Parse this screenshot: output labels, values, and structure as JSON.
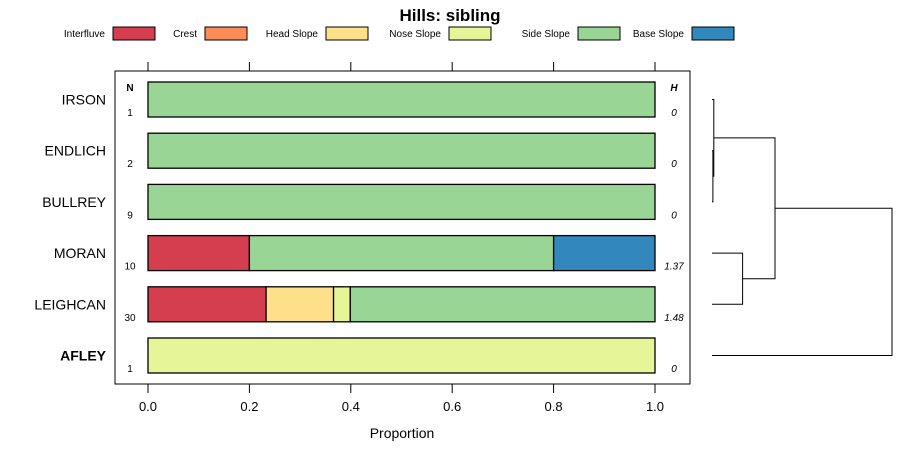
{
  "chart_data": {
    "type": "bar",
    "orientation": "horizontal-stacked",
    "title": "Hills: sibling",
    "xlabel": "Proportion",
    "ylabel": "",
    "xlim": [
      0,
      1
    ],
    "x_ticks": [
      "0.0",
      "0.2",
      "0.4",
      "0.6",
      "0.8",
      "1.0"
    ],
    "x_tick_values": [
      0,
      0.2,
      0.4,
      0.6,
      0.8,
      1.0
    ],
    "legend_position": "top",
    "n_header": "N",
    "h_header": "H",
    "series": [
      {
        "name": "Interfluve",
        "color": "#d53e4f"
      },
      {
        "name": "Crest",
        "color": "#fc8d59"
      },
      {
        "name": "Head Slope",
        "color": "#fee08b"
      },
      {
        "name": "Nose Slope",
        "color": "#e6f598"
      },
      {
        "name": "Side Slope",
        "color": "#99d594"
      },
      {
        "name": "Base Slope",
        "color": "#3288bd"
      }
    ],
    "categories": [
      "IRSON",
      "ENDLICH",
      "BULLREY",
      "MORAN",
      "LEIGHCAN",
      "AFLEY"
    ],
    "rows": [
      {
        "label": "IRSON",
        "n": "1",
        "h": "0",
        "bold": false,
        "values": [
          0,
          0,
          0,
          0,
          1.0,
          0
        ]
      },
      {
        "label": "ENDLICH",
        "n": "2",
        "h": "0",
        "bold": false,
        "values": [
          0,
          0,
          0,
          0,
          1.0,
          0
        ]
      },
      {
        "label": "BULLREY",
        "n": "9",
        "h": "0",
        "bold": false,
        "values": [
          0,
          0,
          0,
          0,
          1.0,
          0
        ]
      },
      {
        "label": "MORAN",
        "n": "10",
        "h": "1.37",
        "bold": false,
        "values": [
          0.2,
          0,
          0,
          0,
          0.6,
          0.2
        ]
      },
      {
        "label": "LEIGHCAN",
        "n": "30",
        "h": "1.48",
        "bold": false,
        "values": [
          0.233,
          0,
          0.133,
          0.033,
          0.601,
          0
        ]
      },
      {
        "label": "AFLEY",
        "n": "1",
        "h": "0",
        "bold": true,
        "values": [
          0,
          0,
          0,
          1.0,
          0,
          0
        ]
      }
    ],
    "dendrogram": {
      "type": "cluster",
      "leaves": [
        "IRSON",
        "ENDLICH",
        "BULLREY",
        "MORAN",
        "LEIGHCAN",
        "AFLEY"
      ],
      "merges": [
        {
          "id": "a",
          "children": [
            "ENDLICH",
            "BULLREY"
          ],
          "height": 0.005
        },
        {
          "id": "b",
          "children": [
            "IRSON",
            "a"
          ],
          "height": 0.01
        },
        {
          "id": "c",
          "children": [
            "MORAN",
            "LEIGHCAN"
          ],
          "height": 0.17
        },
        {
          "id": "d",
          "children": [
            "b",
            "c"
          ],
          "height": 0.35
        },
        {
          "id": "e",
          "children": [
            "d",
            "AFLEY"
          ],
          "height": 1.0
        }
      ]
    }
  }
}
